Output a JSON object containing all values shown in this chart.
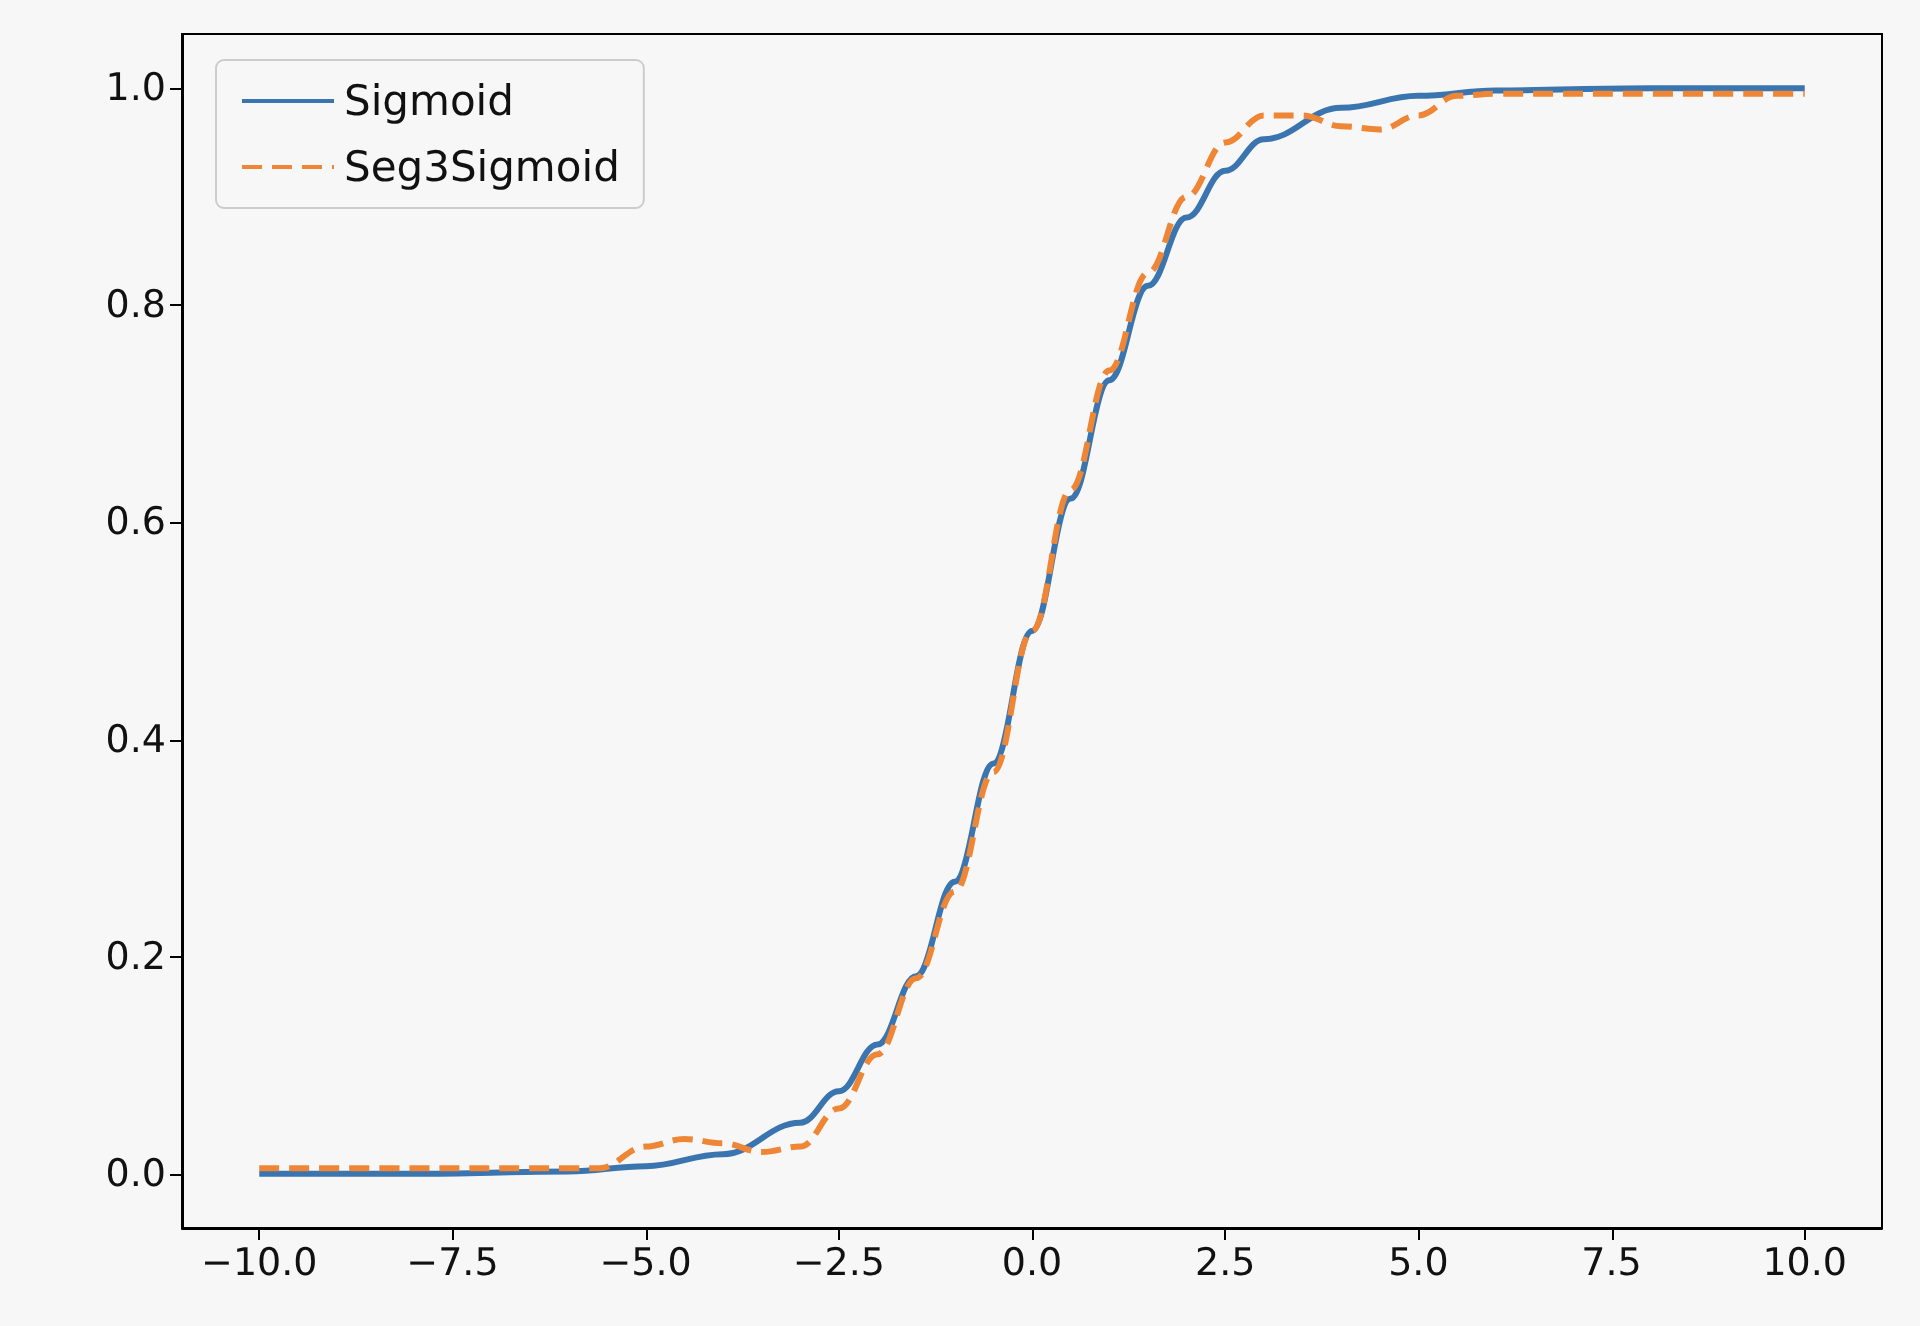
{
  "chart_data": {
    "type": "line",
    "xlim": [
      -11,
      11
    ],
    "xticks": [
      {
        "value": -10,
        "label": "−10.0"
      },
      {
        "value": -7.5,
        "label": "−7.5"
      },
      {
        "value": -5,
        "label": "−5.0"
      },
      {
        "value": -2.5,
        "label": "−2.5"
      },
      {
        "value": 0,
        "label": "0.0"
      },
      {
        "value": 2.5,
        "label": "2.5"
      },
      {
        "value": 5,
        "label": "5.0"
      },
      {
        "value": 7.5,
        "label": "7.5"
      },
      {
        "value": 10,
        "label": "10.0"
      }
    ],
    "ylim": [
      -0.05,
      1.05
    ],
    "yticks": [
      {
        "value": 0,
        "label": "0.0"
      },
      {
        "value": 0.2,
        "label": "0.2"
      },
      {
        "value": 0.4,
        "label": "0.4"
      },
      {
        "value": 0.6,
        "label": "0.6"
      },
      {
        "value": 0.8,
        "label": "0.8"
      },
      {
        "value": 1,
        "label": "1.0"
      }
    ],
    "grid": false,
    "legend": "top left",
    "marker": "none",
    "series": [
      {
        "name": "Sigmoid",
        "color": "#3b75af",
        "line_style": "solid",
        "x": [
          -10,
          -8,
          -6,
          -5,
          -4,
          -3,
          -2.5,
          -2,
          -1.5,
          -1,
          -0.5,
          0,
          0.5,
          1,
          1.5,
          2,
          2.5,
          3,
          4,
          5,
          6,
          8,
          10
        ],
        "values": [
          0.0,
          0.0,
          0.002,
          0.007,
          0.018,
          0.047,
          0.076,
          0.119,
          0.182,
          0.269,
          0.378,
          0.5,
          0.622,
          0.731,
          0.818,
          0.881,
          0.924,
          0.953,
          0.982,
          0.993,
          0.998,
          1.0,
          1.0
        ]
      },
      {
        "name": "Seg3Sigmoid",
        "color": "#ef8636",
        "line_style": "dashed",
        "x": [
          -10,
          -8,
          -6,
          -5.6,
          -5,
          -4.5,
          -4,
          -3.5,
          -3,
          -2.5,
          -2,
          -1.5,
          -1,
          -0.5,
          0,
          0.5,
          1,
          1.5,
          2,
          2.5,
          3,
          3.5,
          4,
          4.5,
          5,
          5.5,
          6,
          8,
          10
        ],
        "values": [
          0.005,
          0.005,
          0.005,
          0.005,
          0.025,
          0.032,
          0.028,
          0.02,
          0.025,
          0.06,
          0.11,
          0.18,
          0.26,
          0.37,
          0.5,
          0.63,
          0.74,
          0.83,
          0.9,
          0.95,
          0.975,
          0.975,
          0.965,
          0.962,
          0.975,
          0.993,
          0.995,
          0.995,
          0.995
        ]
      }
    ]
  }
}
